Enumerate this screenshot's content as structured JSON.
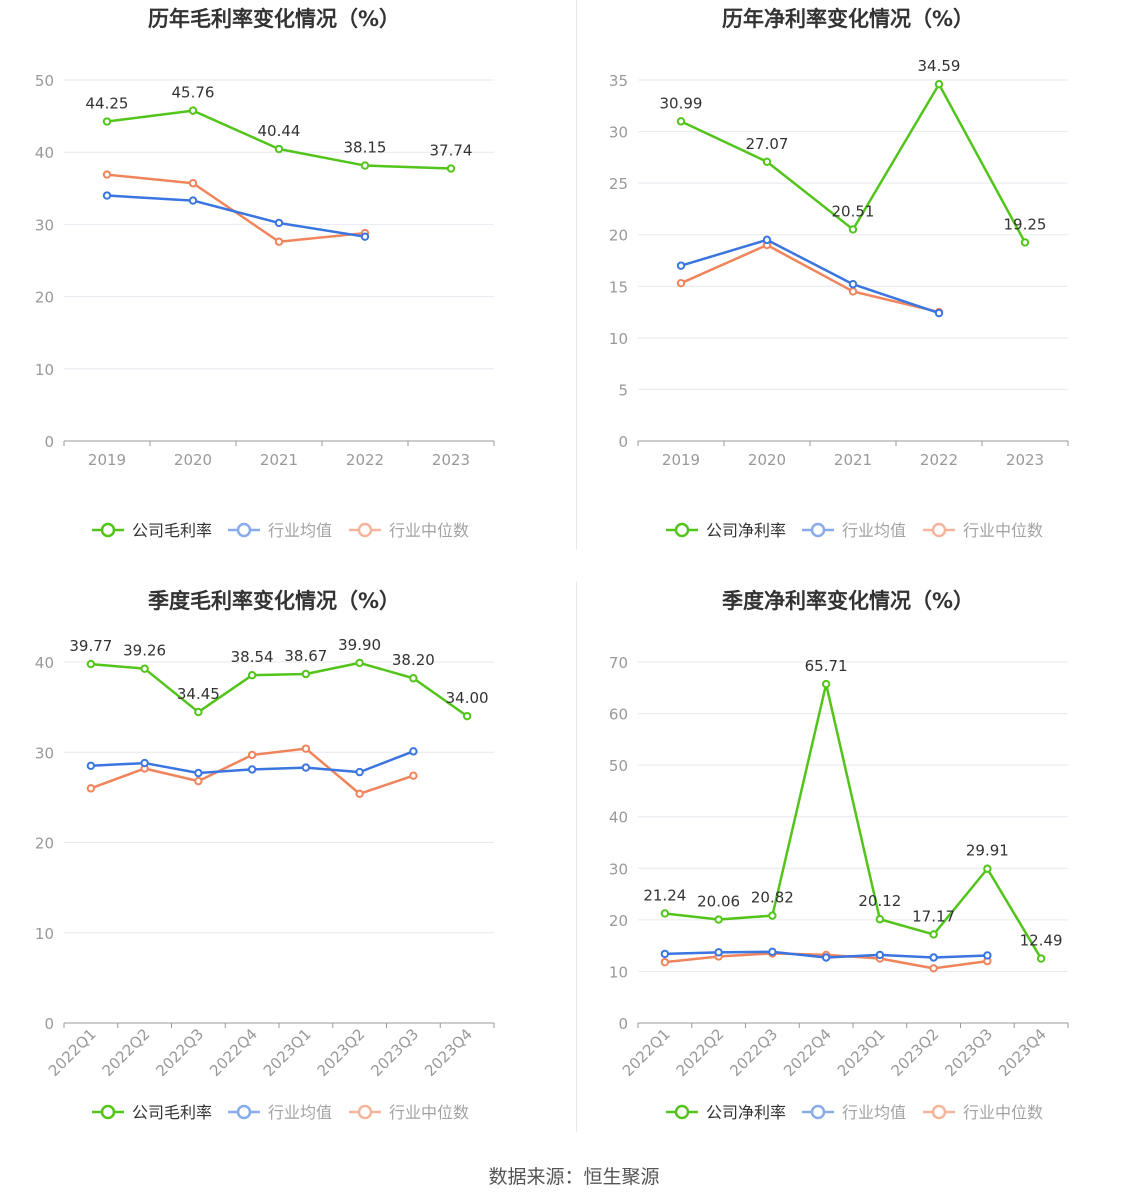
{
  "colors": {
    "company": "#52c41a",
    "avg": "#3a75e0",
    "median": "#f0845c",
    "grid": "#e6e9f0",
    "axis": "#999999",
    "tick": "#999999",
    "title": "#333333",
    "label": "#333333"
  },
  "legend": {
    "avg_label": "行业均值",
    "median_label": "行业中位数"
  },
  "source": "数据来源：恒生聚源",
  "chart_data": [
    {
      "type": "line",
      "title": "历年毛利率变化情况（%）",
      "categories": [
        "2019",
        "2020",
        "2021",
        "2022",
        "2023"
      ],
      "ylim": [
        0,
        50
      ],
      "yticks": [
        0,
        10,
        20,
        30,
        40,
        50
      ],
      "rotate_x": false,
      "series": [
        {
          "name": "公司毛利率",
          "key": "company",
          "values": [
            44.25,
            45.76,
            40.44,
            38.15,
            37.74
          ],
          "labels": [
            "44.25",
            "45.76",
            "40.44",
            "38.15",
            "37.74"
          ]
        },
        {
          "name": "行业均值",
          "key": "avg",
          "values": [
            34.0,
            33.3,
            30.2,
            28.3,
            null
          ]
        },
        {
          "name": "行业中位数",
          "key": "median",
          "values": [
            36.9,
            35.7,
            27.6,
            28.8,
            null
          ]
        }
      ]
    },
    {
      "type": "line",
      "title": "历年净利率变化情况（%）",
      "categories": [
        "2019",
        "2020",
        "2021",
        "2022",
        "2023"
      ],
      "ylim": [
        0,
        35
      ],
      "yticks": [
        0,
        5,
        10,
        15,
        20,
        25,
        30,
        35
      ],
      "rotate_x": false,
      "series": [
        {
          "name": "公司净利率",
          "key": "company",
          "values": [
            30.99,
            27.07,
            20.51,
            34.59,
            19.25
          ],
          "labels": [
            "30.99",
            "27.07",
            "20.51",
            "34.59",
            "19.25"
          ]
        },
        {
          "name": "行业均值",
          "key": "avg",
          "values": [
            17.0,
            19.5,
            15.2,
            12.4,
            null
          ]
        },
        {
          "name": "行业中位数",
          "key": "median",
          "values": [
            15.3,
            19.0,
            14.5,
            12.5,
            null
          ]
        }
      ]
    },
    {
      "type": "line",
      "title": "季度毛利率变化情况（%）",
      "categories": [
        "2022Q1",
        "2022Q2",
        "2022Q3",
        "2022Q4",
        "2023Q1",
        "2023Q2",
        "2023Q3",
        "2023Q4"
      ],
      "ylim": [
        0,
        40
      ],
      "yticks": [
        0,
        10,
        20,
        30,
        40
      ],
      "rotate_x": true,
      "series": [
        {
          "name": "公司毛利率",
          "key": "company",
          "values": [
            39.77,
            39.26,
            34.45,
            38.54,
            38.67,
            39.9,
            38.2,
            34.0
          ],
          "labels": [
            "39.77",
            "39.26",
            "34.45",
            "38.54",
            "38.67",
            "39.90",
            "38.20",
            "34.00"
          ]
        },
        {
          "name": "行业均值",
          "key": "avg",
          "values": [
            28.5,
            28.8,
            27.7,
            28.1,
            28.3,
            27.8,
            30.1,
            null
          ]
        },
        {
          "name": "行业中位数",
          "key": "median",
          "values": [
            26.0,
            28.2,
            26.8,
            29.7,
            30.4,
            25.4,
            27.4,
            null
          ]
        }
      ]
    },
    {
      "type": "line",
      "title": "季度净利率变化情况（%）",
      "categories": [
        "2022Q1",
        "2022Q2",
        "2022Q3",
        "2022Q4",
        "2023Q1",
        "2023Q2",
        "2023Q3",
        "2023Q4"
      ],
      "ylim": [
        0,
        70
      ],
      "yticks": [
        0,
        10,
        20,
        30,
        40,
        50,
        60,
        70
      ],
      "rotate_x": true,
      "series": [
        {
          "name": "公司净利率",
          "key": "company",
          "values": [
            21.24,
            20.06,
            20.82,
            65.71,
            20.12,
            17.17,
            29.91,
            12.49
          ],
          "labels": [
            "21.24",
            "20.06",
            "20.82",
            "65.71",
            "20.12",
            "17.17",
            "29.91",
            "12.49"
          ]
        },
        {
          "name": "行业均值",
          "key": "avg",
          "values": [
            13.4,
            13.7,
            13.8,
            12.7,
            13.2,
            12.7,
            13.1,
            null
          ]
        },
        {
          "name": "行业中位数",
          "key": "median",
          "values": [
            11.8,
            12.9,
            13.5,
            13.2,
            12.5,
            10.6,
            12.0,
            null
          ]
        }
      ]
    }
  ]
}
